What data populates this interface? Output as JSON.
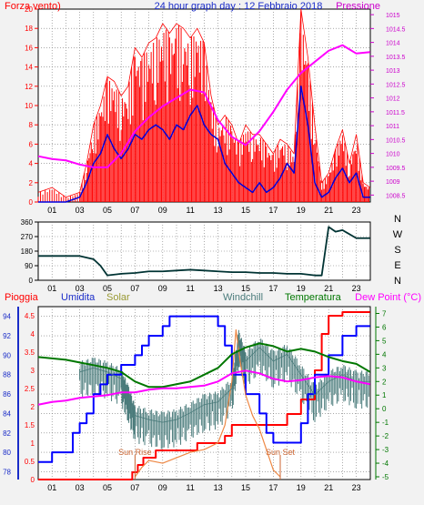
{
  "chart_data": [
    {
      "type": "line",
      "title": "24 hour graph day : 12 Febbraio 2018",
      "x_ticks": [
        "01",
        "03",
        "05",
        "07",
        "09",
        "11",
        "13",
        "15",
        "17",
        "19",
        "21",
        "23"
      ],
      "x_range_hours": [
        0,
        24
      ],
      "left_axis": {
        "label": "Forza vento)",
        "ticks": [
          "0",
          "2",
          "4",
          "6",
          "8",
          "10",
          "12",
          "14",
          "16",
          "18",
          "20"
        ],
        "range": [
          0,
          20
        ]
      },
      "right_axis": {
        "label": "Pressione",
        "ticks": [
          "1008.5",
          "1009",
          "1009.5",
          "1010",
          "1010.5",
          "1011",
          "1011.5",
          "1012",
          "1012.5",
          "1013",
          "1013.5",
          "1014",
          "1014.5",
          "1015"
        ],
        "range": [
          1008.25,
          1015.2
        ]
      },
      "series": [
        {
          "name": "",
          "color": "#ff0000",
          "style": "spikes",
          "x": [
            0.0,
            1.0,
            2.0,
            3.0,
            3.5,
            4.0,
            4.5,
            5.0,
            5.5,
            6.0,
            6.5,
            7.0,
            7.5,
            8.0,
            8.5,
            9.0,
            9.5,
            10.0,
            10.5,
            11.0,
            11.5,
            12.0,
            12.5,
            13.0,
            13.5,
            14.0,
            14.5,
            15.0,
            15.5,
            16.0,
            16.5,
            17.0,
            17.5,
            18.0,
            18.5,
            19.0,
            19.5,
            20.0,
            20.5,
            21.0,
            21.5,
            22.0,
            22.5,
            23.0,
            23.5,
            24.0
          ],
          "y": [
            1.0,
            1.5,
            0.5,
            1.0,
            4.0,
            8.0,
            10.0,
            13.0,
            12.5,
            11.0,
            12.0,
            16.0,
            15.0,
            16.5,
            17.0,
            18.5,
            17.5,
            18.5,
            18.0,
            17.0,
            18.0,
            16.5,
            11.0,
            8.0,
            9.0,
            8.0,
            6.0,
            8.0,
            7.0,
            7.0,
            6.0,
            5.0,
            6.5,
            6.0,
            5.0,
            20.0,
            15.0,
            8.0,
            2.0,
            3.0,
            5.5,
            7.5,
            4.0,
            7.0,
            2.0,
            1.5
          ]
        },
        {
          "name": "",
          "color": "#0000dd",
          "axis": "left",
          "x": [
            0.0,
            1.0,
            2.0,
            3.0,
            3.5,
            4.0,
            4.5,
            5.0,
            5.5,
            6.0,
            6.5,
            7.0,
            7.5,
            8.0,
            8.5,
            9.0,
            9.5,
            10.0,
            10.5,
            11.0,
            11.5,
            12.0,
            12.5,
            13.0,
            13.5,
            14.0,
            14.5,
            15.0,
            15.5,
            16.0,
            16.5,
            17.0,
            17.5,
            18.0,
            18.5,
            19.0,
            19.5,
            20.0,
            20.5,
            21.0,
            21.5,
            22.0,
            22.5,
            23.0,
            23.5,
            24.0
          ],
          "y": [
            0.0,
            0.0,
            0.0,
            0.5,
            2.0,
            4.0,
            5.0,
            7.0,
            5.5,
            4.5,
            5.5,
            7.0,
            6.5,
            7.5,
            8.0,
            7.5,
            6.5,
            8.0,
            7.5,
            9.0,
            10.0,
            8.0,
            7.0,
            6.5,
            4.0,
            3.0,
            2.0,
            1.5,
            1.0,
            2.0,
            1.0,
            1.5,
            2.5,
            4.0,
            3.0,
            12.0,
            8.0,
            2.0,
            0.5,
            1.0,
            2.5,
            3.5,
            2.0,
            3.0,
            0.5,
            0.5
          ]
        },
        {
          "name": "Pressione",
          "color": "#ff00ff",
          "axis": "right",
          "x": [
            0.0,
            1.0,
            2.0,
            3.0,
            4.0,
            5.0,
            6.0,
            7.0,
            8.0,
            9.0,
            10.0,
            11.0,
            12.0,
            13.0,
            14.0,
            15.0,
            16.0,
            17.0,
            18.0,
            19.0,
            20.0,
            21.0,
            22.0,
            23.0,
            24.0
          ],
          "y": [
            1009.9,
            1009.8,
            1009.75,
            1009.6,
            1009.5,
            1009.5,
            1010.0,
            1010.8,
            1011.3,
            1011.7,
            1012.0,
            1012.3,
            1012.2,
            1011.2,
            1010.6,
            1010.3,
            1010.8,
            1011.5,
            1012.3,
            1012.9,
            1013.3,
            1013.7,
            1013.9,
            1013.6,
            1013.65
          ]
        }
      ]
    },
    {
      "type": "line",
      "title": "",
      "left_axis": {
        "ticks": [
          "0",
          "90",
          "180",
          "270",
          "360"
        ],
        "range": [
          0,
          360
        ]
      },
      "right_labels": [
        "N",
        "W",
        "S",
        "E",
        "N"
      ],
      "series": [
        {
          "name": "",
          "color": "#003333",
          "x": [
            0.0,
            2.0,
            3.0,
            4.0,
            4.5,
            5.0,
            6.0,
            7.0,
            8.0,
            9.0,
            10.0,
            11.0,
            12.0,
            13.0,
            14.0,
            15.0,
            16.0,
            17.0,
            18.0,
            19.0,
            20.0,
            20.5,
            21.0,
            21.5,
            22.0,
            23.0,
            24.0
          ],
          "y": [
            150,
            150,
            150,
            130,
            90,
            30,
            40,
            45,
            55,
            55,
            60,
            65,
            60,
            55,
            50,
            50,
            45,
            45,
            40,
            40,
            30,
            30,
            330,
            300,
            310,
            260,
            260
          ]
        }
      ]
    },
    {
      "type": "line",
      "title": "",
      "legend": [
        "Pioggia",
        "Umidita",
        "Solar",
        "Windchill",
        "Temperatura",
        "Dew Point (°C)"
      ],
      "left_axis_rain": {
        "label": "Pioggia",
        "ticks": [
          "0",
          "0.5",
          "1",
          "1.5",
          "2",
          "2.5",
          "3",
          "3.5",
          "4",
          "4.5"
        ],
        "range": [
          0,
          4.75
        ]
      },
      "left_axis_hum": {
        "label": "Umidita",
        "ticks": [
          "78",
          "80",
          "82",
          "84",
          "86",
          "88",
          "90",
          "92",
          "94"
        ],
        "range": [
          77.2,
          95
        ]
      },
      "right_axis_temp": {
        "label": "Dew Point (°C)",
        "ticks": [
          "-5",
          "-4",
          "-3",
          "-2",
          "-1",
          "0",
          "1",
          "2",
          "3",
          "4",
          "5",
          "6",
          "7"
        ],
        "range": [
          -5.2,
          7.5
        ]
      },
      "annotations": [
        {
          "text": "Sun Rise",
          "hour": 7.0
        },
        {
          "text": "Sun Set",
          "hour": 17.5
        }
      ],
      "series": [
        {
          "name": "Pioggia",
          "color": "#ff0000",
          "axis": "rain",
          "step": true,
          "x": [
            0.0,
            6.0,
            6.8,
            7.2,
            7.6,
            8.0,
            8.5,
            10.5,
            11.5,
            12.5,
            13.5,
            14.0,
            16.0,
            17.0,
            18.0,
            19.0,
            20.0,
            20.5,
            21.0,
            22.0,
            23.0,
            24.0
          ],
          "y": [
            0.0,
            0.0,
            0.2,
            0.4,
            0.6,
            0.6,
            0.8,
            0.8,
            1.0,
            1.0,
            1.2,
            1.5,
            1.5,
            1.5,
            1.8,
            2.2,
            3.0,
            4.0,
            4.5,
            4.6,
            4.6,
            4.6
          ]
        },
        {
          "name": "Umidita",
          "color": "#0000ff",
          "axis": "hum",
          "step": true,
          "x": [
            0.0,
            0.5,
            1.0,
            2.0,
            2.5,
            3.0,
            3.5,
            4.0,
            4.5,
            5.0,
            5.5,
            6.0,
            6.5,
            7.0,
            7.5,
            8.0,
            8.5,
            9.0,
            9.5,
            10.0,
            11.0,
            12.0,
            13.0,
            13.5,
            14.0,
            15.0,
            16.0,
            16.5,
            17.0,
            17.5,
            18.0,
            19.0,
            19.5,
            20.0,
            21.0,
            22.0,
            23.0,
            24.0
          ],
          "y": [
            79,
            79,
            80,
            80,
            82,
            83,
            84,
            86,
            87,
            88,
            88,
            89,
            89,
            90,
            91,
            92,
            92,
            93,
            94,
            94,
            94,
            94,
            93,
            91,
            88,
            86,
            84,
            82,
            81,
            81,
            81,
            83,
            86,
            88,
            90,
            92,
            93,
            93
          ]
        },
        {
          "name": "Solar",
          "color": "#ee8844",
          "axis": "temp",
          "x": [
            7.0,
            7.5,
            8.0,
            9.0,
            10.0,
            11.0,
            12.0,
            13.0,
            13.5,
            14.0,
            14.3,
            14.6,
            15.0,
            15.5,
            16.0,
            16.5,
            17.0,
            17.5
          ],
          "y": [
            -5.0,
            -4.3,
            -3.8,
            -4.0,
            -3.6,
            -3.2,
            -3.0,
            -2.5,
            -1.2,
            2.0,
            5.8,
            3.5,
            1.0,
            -0.5,
            -1.5,
            -3.0,
            -4.5,
            -5.0
          ]
        },
        {
          "name": "Windchill",
          "color": "#4a7b7b",
          "axis": "temp",
          "x": [
            3.0,
            4.0,
            5.0,
            6.0,
            6.5,
            7.0,
            8.0,
            9.0,
            10.0,
            11.0,
            12.0,
            13.0,
            14.0,
            14.5,
            15.0,
            16.0,
            17.0,
            18.0,
            19.0,
            20.0,
            21.0,
            22.0,
            23.0,
            24.0
          ],
          "y": [
            2.7,
            3.0,
            2.7,
            2.2,
            1.0,
            -0.5,
            -0.8,
            -1.0,
            -0.8,
            -0.3,
            0.3,
            0.5,
            1.5,
            5.0,
            3.5,
            4.5,
            3.5,
            4.0,
            2.5,
            1.0,
            2.0,
            2.5,
            2.0,
            2.0
          ]
        },
        {
          "name": "Temperatura",
          "color": "#007700",
          "axis": "temp",
          "x": [
            0.0,
            1.0,
            2.0,
            3.0,
            4.0,
            5.0,
            6.0,
            7.0,
            8.0,
            9.0,
            10.0,
            11.0,
            12.0,
            13.0,
            14.0,
            15.0,
            16.0,
            17.0,
            18.0,
            19.0,
            20.0,
            21.0,
            22.0,
            23.0,
            24.0
          ],
          "y": [
            3.8,
            3.7,
            3.6,
            3.4,
            3.2,
            3.0,
            2.7,
            2.0,
            1.6,
            1.6,
            1.8,
            2.0,
            2.5,
            3.0,
            4.0,
            4.5,
            4.8,
            4.6,
            4.2,
            4.4,
            4.2,
            3.8,
            3.5,
            3.3,
            2.7
          ]
        },
        {
          "name": "Dew Point (°C)",
          "color": "#ff00ff",
          "axis": "temp",
          "x": [
            0.0,
            1.0,
            2.0,
            3.0,
            4.0,
            5.0,
            6.0,
            7.0,
            8.0,
            9.0,
            10.0,
            11.0,
            12.0,
            13.0,
            14.0,
            15.0,
            16.0,
            17.0,
            18.0,
            19.0,
            20.0,
            21.0,
            22.0,
            23.0,
            24.0
          ],
          "y": [
            0.3,
            0.5,
            0.6,
            0.8,
            0.9,
            1.0,
            1.2,
            1.2,
            1.4,
            1.5,
            1.5,
            1.6,
            1.7,
            2.0,
            2.6,
            2.8,
            2.6,
            2.2,
            2.0,
            2.1,
            2.3,
            2.4,
            2.3,
            2.0,
            1.8
          ]
        }
      ]
    }
  ]
}
